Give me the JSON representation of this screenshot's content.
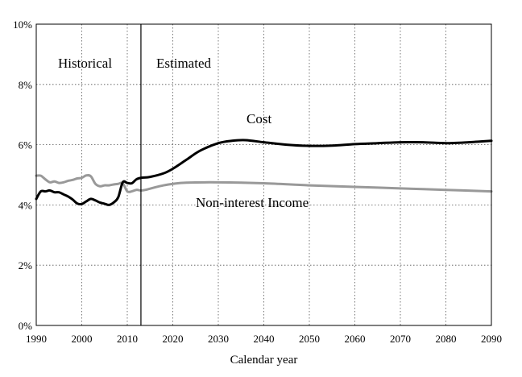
{
  "chart_data": {
    "type": "line",
    "title": "",
    "xlabel": "Calendar year",
    "ylabel": "",
    "xlim": [
      1990,
      2090
    ],
    "ylim": [
      0,
      10
    ],
    "xticks": [
      "1990",
      "2000",
      "2010",
      "2020",
      "2030",
      "2040",
      "2050",
      "2060",
      "2070",
      "2080",
      "2090"
    ],
    "yticks": [
      "0%",
      "2%",
      "4%",
      "6%",
      "8%",
      "10%"
    ],
    "grid": true,
    "divider_year": 2013,
    "annotations": {
      "historical": "Historical",
      "estimated": "Estimated"
    },
    "series": [
      {
        "name": "Cost",
        "color": "#000000",
        "points": [
          [
            1990,
            4.2
          ],
          [
            1991,
            4.45
          ],
          [
            1992,
            4.45
          ],
          [
            1993,
            4.48
          ],
          [
            1994,
            4.42
          ],
          [
            1995,
            4.42
          ],
          [
            1996,
            4.35
          ],
          [
            1997,
            4.28
          ],
          [
            1998,
            4.18
          ],
          [
            1999,
            4.05
          ],
          [
            2000,
            4.03
          ],
          [
            2001,
            4.12
          ],
          [
            2002,
            4.2
          ],
          [
            2003,
            4.15
          ],
          [
            2004,
            4.08
          ],
          [
            2005,
            4.04
          ],
          [
            2006,
            4.0
          ],
          [
            2007,
            4.08
          ],
          [
            2008,
            4.25
          ],
          [
            2009,
            4.75
          ],
          [
            2010,
            4.73
          ],
          [
            2011,
            4.72
          ],
          [
            2012,
            4.85
          ],
          [
            2013,
            4.9
          ],
          [
            2015,
            4.93
          ],
          [
            2018,
            5.05
          ],
          [
            2020,
            5.2
          ],
          [
            2023,
            5.5
          ],
          [
            2026,
            5.8
          ],
          [
            2030,
            6.05
          ],
          [
            2033,
            6.13
          ],
          [
            2036,
            6.15
          ],
          [
            2040,
            6.08
          ],
          [
            2045,
            6.0
          ],
          [
            2050,
            5.96
          ],
          [
            2055,
            5.97
          ],
          [
            2060,
            6.02
          ],
          [
            2065,
            6.05
          ],
          [
            2070,
            6.08
          ],
          [
            2075,
            6.08
          ],
          [
            2080,
            6.05
          ],
          [
            2085,
            6.08
          ],
          [
            2090,
            6.13
          ]
        ]
      },
      {
        "name": "Non-interest Income",
        "color": "#999999",
        "points": [
          [
            1990,
            4.97
          ],
          [
            1991,
            4.97
          ],
          [
            1992,
            4.85
          ],
          [
            1993,
            4.75
          ],
          [
            1994,
            4.78
          ],
          [
            1995,
            4.73
          ],
          [
            1996,
            4.75
          ],
          [
            1997,
            4.8
          ],
          [
            1998,
            4.83
          ],
          [
            1999,
            4.88
          ],
          [
            2000,
            4.9
          ],
          [
            2001,
            4.98
          ],
          [
            2002,
            4.95
          ],
          [
            2003,
            4.7
          ],
          [
            2004,
            4.62
          ],
          [
            2005,
            4.65
          ],
          [
            2006,
            4.65
          ],
          [
            2007,
            4.68
          ],
          [
            2008,
            4.7
          ],
          [
            2009,
            4.72
          ],
          [
            2010,
            4.45
          ],
          [
            2011,
            4.45
          ],
          [
            2012,
            4.5
          ],
          [
            2013,
            4.48
          ],
          [
            2014,
            4.5
          ],
          [
            2016,
            4.58
          ],
          [
            2018,
            4.65
          ],
          [
            2020,
            4.7
          ],
          [
            2023,
            4.74
          ],
          [
            2030,
            4.75
          ],
          [
            2040,
            4.72
          ],
          [
            2050,
            4.65
          ],
          [
            2060,
            4.6
          ],
          [
            2070,
            4.55
          ],
          [
            2080,
            4.5
          ],
          [
            2090,
            4.45
          ]
        ]
      }
    ]
  }
}
